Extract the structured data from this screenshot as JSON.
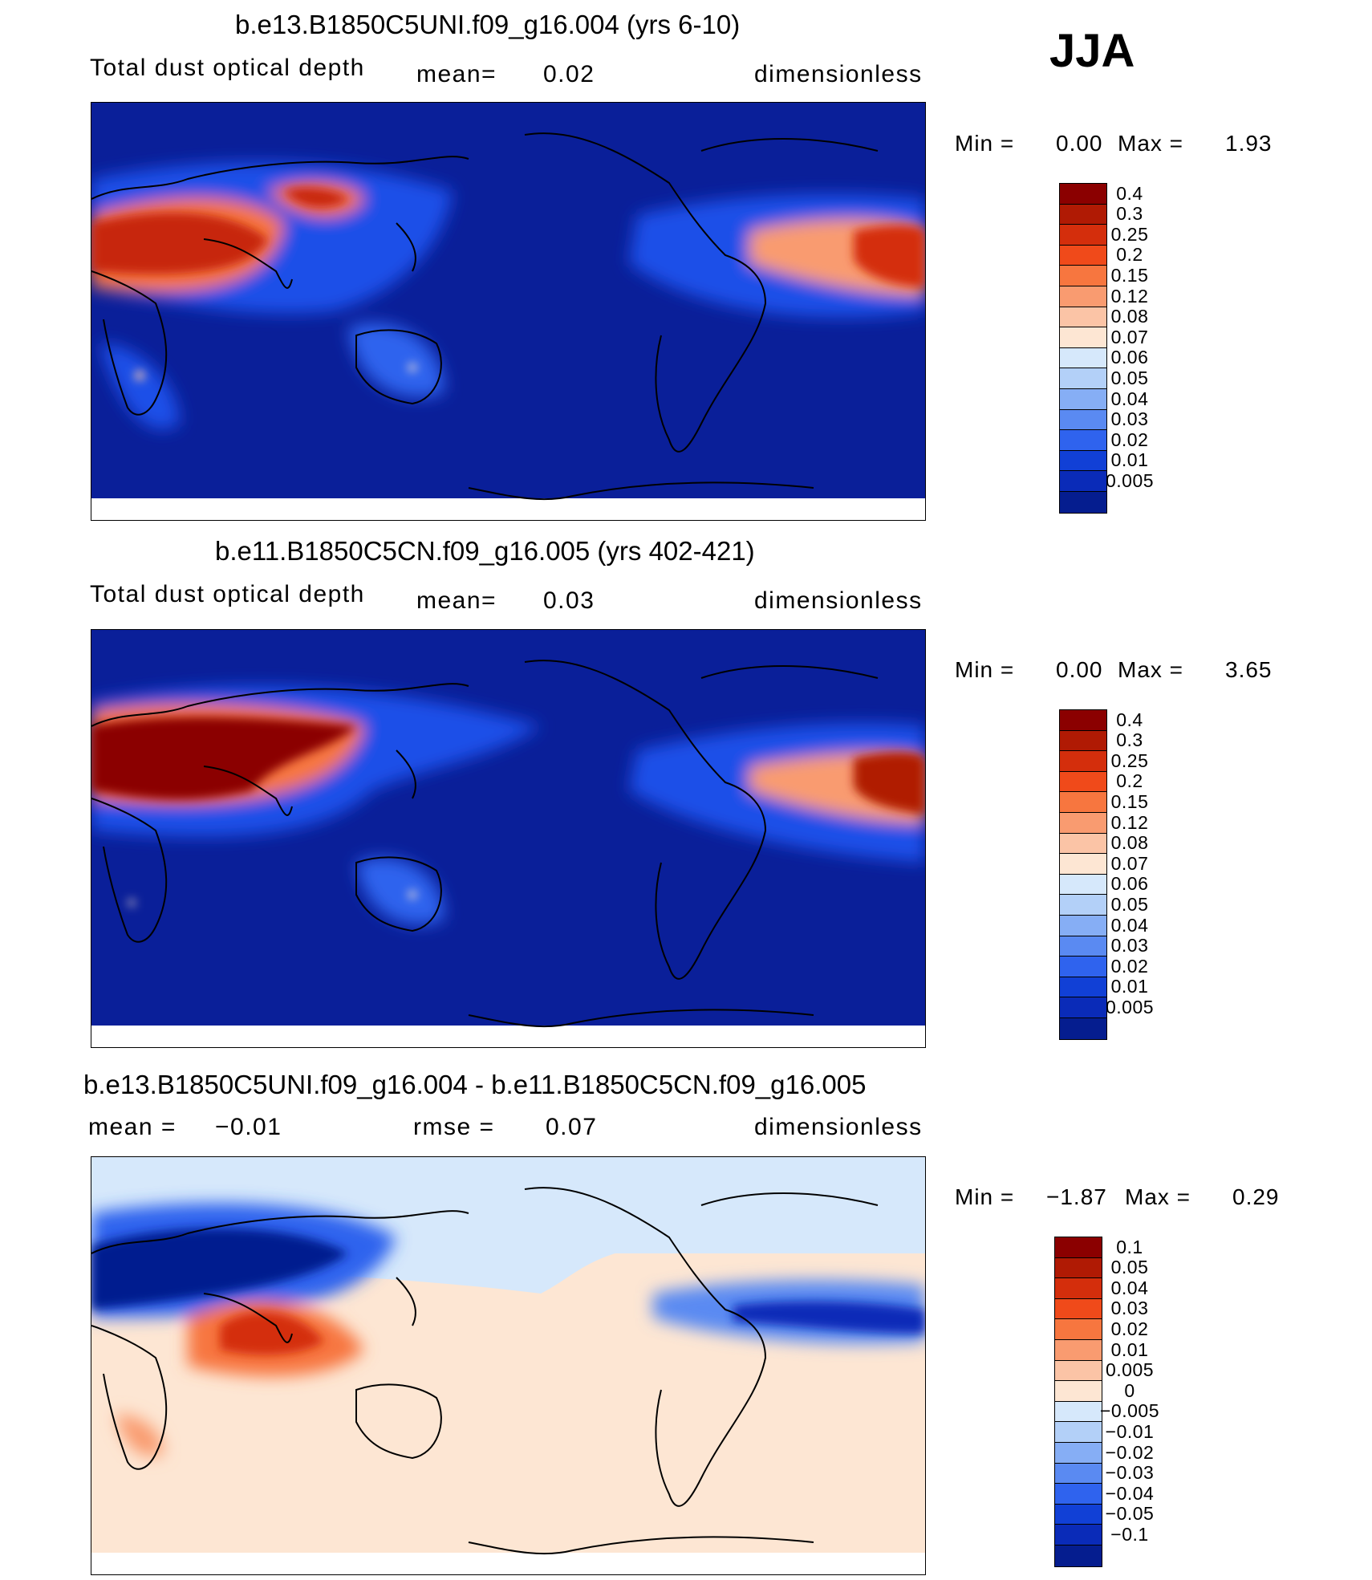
{
  "season": "JJA",
  "panels": [
    {
      "title": "b.e13.B1850C5UNI.f09_g16.004 (yrs 6-10)",
      "left_label": "Total dust optical depth",
      "mean_label": "mean=",
      "mean_value": "0.02",
      "units": "dimensionless",
      "min_label": "Min =",
      "min_value": "0.00",
      "max_label": "Max =",
      "max_value": "1.93"
    },
    {
      "title": "b.e11.B1850C5CN.f09_g16.005 (yrs 402-421)",
      "left_label": "Total dust optical depth",
      "mean_label": "mean=",
      "mean_value": "0.03",
      "units": "dimensionless",
      "min_label": "Min =",
      "min_value": "0.00",
      "max_label": "Max =",
      "max_value": "3.65"
    },
    {
      "title": "b.e13.B1850C5UNI.f09_g16.004 - b.e11.B1850C5CN.f09_g16.005",
      "mean_label": "mean =",
      "mean_value": "−0.01",
      "rmse_label": "rmse =",
      "rmse_value": "0.07",
      "units": "dimensionless",
      "min_label": "Min =",
      "min_value": "−1.87",
      "max_label": "Max =",
      "max_value": "0.29"
    }
  ],
  "colorbars": {
    "field": {
      "labels": [
        "0.4",
        "0.3",
        "0.25",
        "0.2",
        "0.15",
        "0.12",
        "0.08",
        "0.07",
        "0.06",
        "0.05",
        "0.04",
        "0.03",
        "0.02",
        "0.01",
        "0.005"
      ],
      "colors": [
        "#8b0000",
        "#b01a04",
        "#d42e0c",
        "#f04a1a",
        "#f7763f",
        "#f99b70",
        "#fbc4a6",
        "#fde6d3",
        "#d6e8fb",
        "#b3d0f8",
        "#86aef5",
        "#5a8af2",
        "#2f63ee",
        "#1140d6",
        "#0a2bb8",
        "#051d8f"
      ]
    },
    "diff": {
      "labels": [
        "0.1",
        "0.05",
        "0.04",
        "0.03",
        "0.02",
        "0.01",
        "0.005",
        "0",
        "−0.005",
        "−0.01",
        "−0.02",
        "−0.03",
        "−0.04",
        "−0.05",
        "−0.1"
      ],
      "colors": [
        "#8b0000",
        "#b01a04",
        "#d42e0c",
        "#f04a1a",
        "#f7763f",
        "#f99b70",
        "#fbc4a6",
        "#fde6d3",
        "#d6e8fb",
        "#b3d0f8",
        "#86aef5",
        "#5a8af2",
        "#2f63ee",
        "#1140d6",
        "#0a2bb8",
        "#051d8f"
      ]
    }
  },
  "chart_data": [
    {
      "type": "heatmap",
      "title": "b.e13.B1850C5UNI.f09_g16.004 (yrs 6-10)",
      "variable": "Total dust optical depth",
      "units": "dimensionless",
      "mean": 0.02,
      "min": 0.0,
      "max": 1.93,
      "levels": [
        0.005,
        0.01,
        0.02,
        0.03,
        0.04,
        0.05,
        0.06,
        0.07,
        0.08,
        0.12,
        0.15,
        0.2,
        0.25,
        0.3,
        0.4
      ],
      "background": "#0a1f99"
    },
    {
      "type": "heatmap",
      "title": "b.e11.B1850C5CN.f09_g16.005 (yrs 402-421)",
      "variable": "Total dust optical depth",
      "units": "dimensionless",
      "mean": 0.03,
      "min": 0.0,
      "max": 3.65,
      "levels": [
        0.005,
        0.01,
        0.02,
        0.03,
        0.04,
        0.05,
        0.06,
        0.07,
        0.08,
        0.12,
        0.15,
        0.2,
        0.25,
        0.3,
        0.4
      ],
      "background": "#0a1f99"
    },
    {
      "type": "heatmap",
      "title": "b.e13.B1850C5UNI.f09_g16.004 - b.e11.B1850C5CN.f09_g16.005",
      "units": "dimensionless",
      "mean": -0.01,
      "rmse": 0.07,
      "min": -1.87,
      "max": 0.29,
      "levels": [
        -0.1,
        -0.05,
        -0.04,
        -0.03,
        -0.02,
        -0.01,
        -0.005,
        0,
        0.005,
        0.01,
        0.02,
        0.03,
        0.04,
        0.05,
        0.1
      ],
      "background": "#fde6d3"
    }
  ]
}
